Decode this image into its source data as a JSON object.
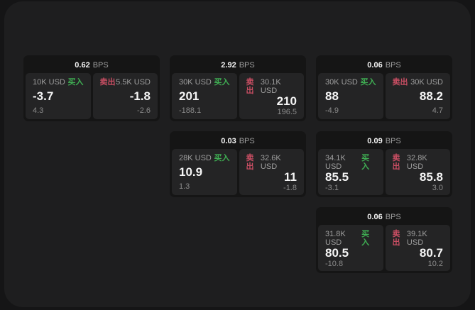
{
  "theme": {
    "bg": "#151516",
    "panel-bg": "#1e1e1f",
    "card-bg": "#151515",
    "pane-bg": "#242425",
    "text-primary": "#f5f5f5",
    "text-secondary": "#9e9e9e",
    "text-dim": "#8b8b8b",
    "buy": "#3fae53",
    "sell": "#c94e63"
  },
  "labels": {
    "bps": "BPS",
    "buy": "买入",
    "sell": "卖出"
  },
  "cards": [
    {
      "bps": "0.62",
      "buy": {
        "amount": "10K USD",
        "value": "-3.7",
        "sub": "4.3"
      },
      "sell": {
        "amount": "5.5K USD",
        "value": "-1.8",
        "sub": "-2.6"
      }
    },
    {
      "bps": "2.92",
      "buy": {
        "amount": "30K USD",
        "value": "201",
        "sub": "-188.1"
      },
      "sell": {
        "amount": "30.1K USD",
        "value": "210",
        "sub": "196.5"
      }
    },
    {
      "bps": "0.06",
      "buy": {
        "amount": "30K USD",
        "value": "88",
        "sub": "-4.9"
      },
      "sell": {
        "amount": "30K USD",
        "value": "88.2",
        "sub": "4.7"
      }
    },
    {
      "bps": "0.03",
      "buy": {
        "amount": "28K USD",
        "value": "10.9",
        "sub": "1.3"
      },
      "sell": {
        "amount": "32.6K USD",
        "value": "11",
        "sub": "-1.8"
      }
    },
    {
      "bps": "0.09",
      "buy": {
        "amount": "34.1K USD",
        "value": "85.5",
        "sub": "-3.1"
      },
      "sell": {
        "amount": "32.8K USD",
        "value": "85.8",
        "sub": "3.0"
      }
    },
    {
      "bps": "0.06",
      "buy": {
        "amount": "31.8K USD",
        "value": "80.5",
        "sub": "-10.8"
      },
      "sell": {
        "amount": "39.1K USD",
        "value": "80.7",
        "sub": "10.2"
      }
    }
  ]
}
